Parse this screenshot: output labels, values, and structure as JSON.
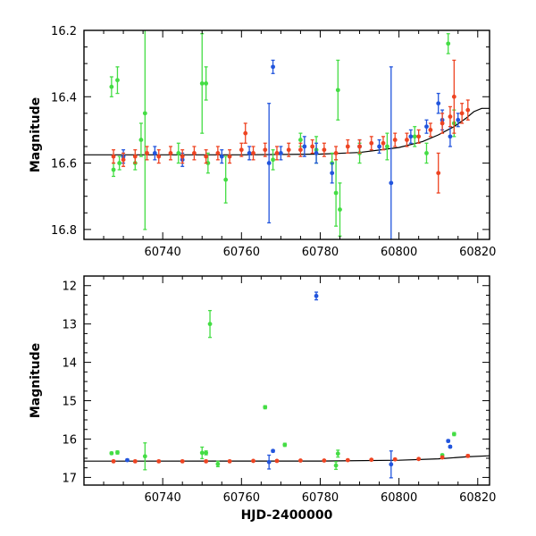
{
  "chart_data": [
    {
      "type": "scatter",
      "panel": "top",
      "xlabel": "",
      "ylabel": "Magnitude",
      "xlim": [
        60720,
        60823
      ],
      "ylim": [
        16.2,
        16.83
      ],
      "y_inverted": true,
      "xticks": [
        60740,
        60760,
        60780,
        60800,
        60820
      ],
      "xtick_labels": [
        "60740",
        "60760",
        "60780",
        "60800",
        "60820"
      ],
      "yticks": [
        16.2,
        16.4,
        16.6,
        16.8
      ],
      "ytick_labels": [
        "16.2",
        "16.4",
        "16.6",
        "16.8"
      ],
      "model_curve": [
        [
          60720,
          16.575
        ],
        [
          60740,
          16.575
        ],
        [
          60760,
          16.575
        ],
        [
          60780,
          16.573
        ],
        [
          60790,
          16.568
        ],
        [
          60800,
          16.553
        ],
        [
          60806,
          16.535
        ],
        [
          60810,
          16.515
        ],
        [
          60814,
          16.49
        ],
        [
          60817,
          16.465
        ],
        [
          60819,
          16.445
        ],
        [
          60821,
          16.435
        ],
        [
          60823,
          16.435
        ]
      ],
      "series": [
        {
          "color": "#44dd44",
          "points": [
            [
              60727,
              16.37,
              0.03
            ],
            [
              60727.5,
              16.62,
              0.02
            ],
            [
              60728.5,
              16.35,
              0.04
            ],
            [
              60729,
              16.6,
              0.02
            ],
            [
              60733,
              16.6,
              0.02
            ],
            [
              60734.5,
              16.53,
              0.05
            ],
            [
              60735.5,
              16.45,
              0.35
            ],
            [
              60744,
              16.57,
              0.03
            ],
            [
              60750,
              16.36,
              0.15
            ],
            [
              60751,
              16.36,
              0.05
            ],
            [
              60751.5,
              16.6,
              0.03
            ],
            [
              60756,
              16.65,
              0.07
            ],
            [
              60768,
              16.59,
              0.03
            ],
            [
              60775,
              16.53,
              0.02
            ],
            [
              60779,
              16.56,
              0.04
            ],
            [
              60783,
              16.6,
              0.03
            ],
            [
              60784,
              16.69,
              0.1
            ],
            [
              60784.5,
              16.38,
              0.09
            ],
            [
              60785,
              16.74,
              0.08
            ],
            [
              60790,
              16.57,
              0.03
            ],
            [
              60797,
              16.55,
              0.04
            ],
            [
              60804,
              16.52,
              0.03
            ],
            [
              60807,
              16.57,
              0.03
            ],
            [
              60812.5,
              16.24,
              0.03
            ],
            [
              60814,
              16.48,
              0.04
            ]
          ]
        },
        {
          "color": "#2255dd",
          "points": [
            [
              60730,
              16.58,
              0.02
            ],
            [
              60738,
              16.57,
              0.02
            ],
            [
              60745,
              16.59,
              0.02
            ],
            [
              60755,
              16.58,
              0.02
            ],
            [
              60762,
              16.57,
              0.02
            ],
            [
              60767,
              16.6,
              0.18
            ],
            [
              60768,
              16.31,
              0.02
            ],
            [
              60770,
              16.57,
              0.02
            ],
            [
              60776,
              16.55,
              0.03
            ],
            [
              60779,
              16.57,
              0.03
            ],
            [
              60783,
              16.63,
              0.03
            ],
            [
              60790,
              16.55,
              0.02
            ],
            [
              60795,
              16.55,
              0.02
            ],
            [
              60798,
              16.66,
              0.35
            ],
            [
              60803,
              16.52,
              0.02
            ],
            [
              60807,
              16.49,
              0.02
            ],
            [
              60810,
              16.42,
              0.03
            ],
            [
              60811,
              16.47,
              0.03
            ],
            [
              60813,
              16.52,
              0.03
            ],
            [
              60815,
              16.47,
              0.02
            ]
          ]
        },
        {
          "color": "#ee4422",
          "points": [
            [
              60727.5,
              16.58,
              0.02
            ],
            [
              60730,
              16.59,
              0.02
            ],
            [
              60733,
              16.58,
              0.02
            ],
            [
              60736,
              16.57,
              0.02
            ],
            [
              60739,
              16.58,
              0.02
            ],
            [
              60742,
              16.57,
              0.02
            ],
            [
              60745,
              16.58,
              0.02
            ],
            [
              60748,
              16.57,
              0.02
            ],
            [
              60751,
              16.58,
              0.02
            ],
            [
              60754,
              16.57,
              0.02
            ],
            [
              60757,
              16.58,
              0.02
            ],
            [
              60760,
              16.56,
              0.02
            ],
            [
              60761,
              16.51,
              0.03
            ],
            [
              60763,
              16.57,
              0.02
            ],
            [
              60766,
              16.56,
              0.02
            ],
            [
              60769,
              16.57,
              0.02
            ],
            [
              60772,
              16.56,
              0.02
            ],
            [
              60775,
              16.56,
              0.02
            ],
            [
              60778,
              16.55,
              0.02
            ],
            [
              60781,
              16.56,
              0.02
            ],
            [
              60784,
              16.57,
              0.02
            ],
            [
              60787,
              16.55,
              0.02
            ],
            [
              60790,
              16.55,
              0.02
            ],
            [
              60793,
              16.54,
              0.02
            ],
            [
              60796,
              16.54,
              0.02
            ],
            [
              60799,
              16.53,
              0.02
            ],
            [
              60802,
              16.53,
              0.02
            ],
            [
              60805,
              16.52,
              0.02
            ],
            [
              60808,
              16.5,
              0.02
            ],
            [
              60810,
              16.63,
              0.06
            ],
            [
              60811,
              16.48,
              0.03
            ],
            [
              60813,
              16.46,
              0.03
            ],
            [
              60814,
              16.4,
              0.11
            ],
            [
              60816,
              16.45,
              0.03
            ],
            [
              60817.5,
              16.44,
              0.03
            ]
          ]
        }
      ]
    },
    {
      "type": "scatter",
      "panel": "bottom",
      "xlabel": "HJD-2400000",
      "ylabel": "Magnitude",
      "xlim": [
        60720,
        60823
      ],
      "ylim": [
        11.75,
        17.2
      ],
      "y_inverted": true,
      "xticks": [
        60740,
        60760,
        60780,
        60800,
        60820
      ],
      "xtick_labels": [
        "60740",
        "60760",
        "60780",
        "60800",
        "60820"
      ],
      "yticks": [
        12,
        13,
        14,
        15,
        16,
        17
      ],
      "ytick_labels": [
        "12",
        "13",
        "14",
        "15",
        "16",
        "17"
      ],
      "model_curve": [
        [
          60720,
          16.575
        ],
        [
          60780,
          16.573
        ],
        [
          60800,
          16.553
        ],
        [
          60810,
          16.515
        ],
        [
          60817,
          16.465
        ],
        [
          60823,
          16.435
        ]
      ],
      "series": [
        {
          "color": "#44dd44",
          "points": [
            [
              60727,
              16.37,
              0.03
            ],
            [
              60728.5,
              16.35,
              0.04
            ],
            [
              60735.5,
              16.45,
              0.35
            ],
            [
              60750,
              16.36,
              0.15
            ],
            [
              60751,
              16.36,
              0.05
            ],
            [
              60752,
              13.0,
              0.35
            ],
            [
              60754,
              16.65,
              0.07
            ],
            [
              60766,
              15.17,
              0.04
            ],
            [
              60771,
              16.15,
              0.04
            ],
            [
              60784.5,
              16.38,
              0.09
            ],
            [
              60784,
              16.69,
              0.1
            ],
            [
              60811,
              16.42,
              0.03
            ],
            [
              60814,
              15.87,
              0.04
            ]
          ]
        },
        {
          "color": "#2255dd",
          "points": [
            [
              60731,
              16.55,
              0.03
            ],
            [
              60767,
              16.6,
              0.18
            ],
            [
              60768,
              16.31,
              0.03
            ],
            [
              60779,
              12.27,
              0.1
            ],
            [
              60798,
              16.66,
              0.35
            ],
            [
              60812.5,
              16.05,
              0.03
            ],
            [
              60813,
              16.2,
              0.03
            ]
          ]
        },
        {
          "color": "#ee4422",
          "points": [
            [
              60727.5,
              16.58,
              0.02
            ],
            [
              60733,
              16.58,
              0.02
            ],
            [
              60739,
              16.58,
              0.02
            ],
            [
              60745,
              16.58,
              0.02
            ],
            [
              60751,
              16.58,
              0.02
            ],
            [
              60757,
              16.58,
              0.02
            ],
            [
              60763,
              16.57,
              0.02
            ],
            [
              60769,
              16.57,
              0.02
            ],
            [
              60775,
              16.56,
              0.02
            ],
            [
              60781,
              16.56,
              0.02
            ],
            [
              60787,
              16.55,
              0.02
            ],
            [
              60793,
              16.54,
              0.02
            ],
            [
              60799,
              16.53,
              0.02
            ],
            [
              60805,
              16.52,
              0.02
            ],
            [
              60811,
              16.48,
              0.03
            ],
            [
              60817.5,
              16.44,
              0.03
            ]
          ]
        }
      ]
    }
  ]
}
